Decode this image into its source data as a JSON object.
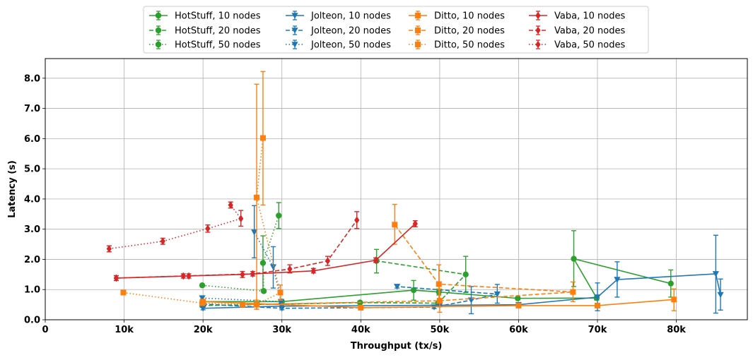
{
  "chart_data": {
    "type": "line",
    "xlabel": "Throughput (tx/s)",
    "ylabel": "Latency (s)",
    "xlim": [
      0,
      89000
    ],
    "ylim": [
      0,
      8.65
    ],
    "grid": true,
    "legend_position": "top-center",
    "x_ticks": [
      {
        "value": 0,
        "label": "0"
      },
      {
        "value": 10000,
        "label": "10k"
      },
      {
        "value": 20000,
        "label": "20k"
      },
      {
        "value": 30000,
        "label": "30k"
      },
      {
        "value": 40000,
        "label": "40k"
      },
      {
        "value": 50000,
        "label": "50k"
      },
      {
        "value": 60000,
        "label": "60k"
      },
      {
        "value": 70000,
        "label": "70k"
      },
      {
        "value": 80000,
        "label": "80k"
      }
    ],
    "y_ticks": [
      {
        "value": 0,
        "label": "0.0"
      },
      {
        "value": 1,
        "label": "1.0"
      },
      {
        "value": 2,
        "label": "2.0"
      },
      {
        "value": 3,
        "label": "3.0"
      },
      {
        "value": 4,
        "label": "4.0"
      },
      {
        "value": 5,
        "label": "5.0"
      },
      {
        "value": 6,
        "label": "6.0"
      },
      {
        "value": 7,
        "label": "7.0"
      },
      {
        "value": 8,
        "label": "8.0"
      }
    ],
    "series": [
      {
        "name": "HotStuff, 10 nodes",
        "color": "#2ca02c",
        "marker": "circle",
        "linestyle": "solid",
        "points": [
          {
            "x": 20000,
            "y": 0.6,
            "lo": 0.55,
            "hi": 0.65
          },
          {
            "x": 30000,
            "y": 0.6,
            "lo": 0.55,
            "hi": 0.65
          },
          {
            "x": 46700,
            "y": 0.98,
            "lo": 0.65,
            "hi": 1.3
          },
          {
            "x": 49900,
            "y": 0.92,
            "lo": 0.82,
            "hi": 1.02
          },
          {
            "x": 59900,
            "y": 0.71,
            "lo": 0.66,
            "hi": 0.76
          },
          {
            "x": 69900,
            "y": 0.72,
            "lo": 0.65,
            "hi": 0.8
          },
          {
            "x": 67000,
            "y": 2.02,
            "lo": 1.1,
            "hi": 2.95
          },
          {
            "x": 79300,
            "y": 1.2,
            "lo": 0.75,
            "hi": 1.65
          }
        ]
      },
      {
        "name": "HotStuff, 20 nodes",
        "color": "#2ca02c",
        "marker": "circle",
        "linestyle": "dashed",
        "points": [
          {
            "x": 19900,
            "y": 0.47,
            "lo": 0.42,
            "hi": 0.52
          },
          {
            "x": 39900,
            "y": 0.57,
            "lo": 0.52,
            "hi": 0.62
          },
          {
            "x": 49800,
            "y": 0.55,
            "lo": 0.5,
            "hi": 0.6
          },
          {
            "x": 53300,
            "y": 1.5,
            "lo": 0.9,
            "hi": 2.1
          },
          {
            "x": 42000,
            "y": 1.95,
            "lo": 1.55,
            "hi": 2.33
          }
        ]
      },
      {
        "name": "HotStuff, 50 nodes",
        "color": "#2ca02c",
        "marker": "circle",
        "linestyle": "dotted",
        "points": [
          {
            "x": 19900,
            "y": 1.14,
            "lo": 1.1,
            "hi": 1.18
          },
          {
            "x": 27700,
            "y": 0.95,
            "lo": 0.9,
            "hi": 1.0
          },
          {
            "x": 27600,
            "y": 1.88,
            "lo": 1.0,
            "hi": 2.78
          },
          {
            "x": 29600,
            "y": 3.45,
            "lo": 3.02,
            "hi": 3.88
          }
        ]
      },
      {
        "name": "Jolteon, 10 nodes",
        "color": "#1f77b4",
        "marker": "triangle-down",
        "linestyle": "solid",
        "points": [
          {
            "x": 20000,
            "y": 0.38,
            "lo": 0.33,
            "hi": 0.43
          },
          {
            "x": 30000,
            "y": 0.45,
            "lo": 0.4,
            "hi": 0.5
          },
          {
            "x": 50000,
            "y": 0.48,
            "lo": 0.43,
            "hi": 0.53
          },
          {
            "x": 60000,
            "y": 0.5,
            "lo": 0.45,
            "hi": 0.55
          },
          {
            "x": 70000,
            "y": 0.75,
            "lo": 0.3,
            "hi": 1.22
          },
          {
            "x": 72500,
            "y": 1.33,
            "lo": 0.75,
            "hi": 1.92
          },
          {
            "x": 85000,
            "y": 1.52,
            "lo": 0.22,
            "hi": 2.8
          },
          {
            "x": 85600,
            "y": 0.83,
            "lo": 0.32,
            "hi": 1.35
          }
        ]
      },
      {
        "name": "Jolteon, 20 nodes",
        "color": "#1f77b4",
        "marker": "triangle-down",
        "linestyle": "dashed",
        "points": [
          {
            "x": 20000,
            "y": 0.52,
            "lo": 0.47,
            "hi": 0.57
          },
          {
            "x": 30000,
            "y": 0.38,
            "lo": 0.33,
            "hi": 0.43
          },
          {
            "x": 40000,
            "y": 0.4,
            "lo": 0.35,
            "hi": 0.45
          },
          {
            "x": 49300,
            "y": 0.42,
            "lo": 0.37,
            "hi": 0.47
          },
          {
            "x": 54000,
            "y": 0.65,
            "lo": 0.2,
            "hi": 1.1
          },
          {
            "x": 57300,
            "y": 0.85,
            "lo": 0.55,
            "hi": 1.17
          },
          {
            "x": 44600,
            "y": 1.1,
            "lo": 1.05,
            "hi": 1.15
          }
        ]
      },
      {
        "name": "Jolteon, 50 nodes",
        "color": "#1f77b4",
        "marker": "triangle-down",
        "linestyle": "dotted",
        "points": [
          {
            "x": 19900,
            "y": 0.72,
            "lo": 0.67,
            "hi": 0.77
          },
          {
            "x": 29900,
            "y": 0.6,
            "lo": 0.55,
            "hi": 0.65
          },
          {
            "x": 28900,
            "y": 1.75,
            "lo": 1.05,
            "hi": 2.42
          },
          {
            "x": 26500,
            "y": 2.9,
            "lo": 2.05,
            "hi": 3.78
          }
        ]
      },
      {
        "name": "Ditto, 10 nodes",
        "color": "#ff7f0e",
        "marker": "square",
        "linestyle": "solid",
        "points": [
          {
            "x": 20000,
            "y": 0.6,
            "lo": 0.55,
            "hi": 0.65
          },
          {
            "x": 40000,
            "y": 0.4,
            "lo": 0.35,
            "hi": 0.45
          },
          {
            "x": 60000,
            "y": 0.47,
            "lo": 0.42,
            "hi": 0.52
          },
          {
            "x": 70000,
            "y": 0.47,
            "lo": 0.42,
            "hi": 0.52
          },
          {
            "x": 79700,
            "y": 0.67,
            "lo": 0.3,
            "hi": 1.02
          }
        ]
      },
      {
        "name": "Ditto, 20 nodes",
        "color": "#ff7f0e",
        "marker": "square",
        "linestyle": "dashed",
        "points": [
          {
            "x": 25000,
            "y": 0.5,
            "lo": 0.45,
            "hi": 0.55
          },
          {
            "x": 50000,
            "y": 0.63,
            "lo": 0.25,
            "hi": 1.02
          },
          {
            "x": 66900,
            "y": 0.92,
            "lo": 0.6,
            "hi": 1.25
          },
          {
            "x": 49900,
            "y": 1.18,
            "lo": 0.55,
            "hi": 1.82
          },
          {
            "x": 44300,
            "y": 3.15,
            "lo": 2.5,
            "hi": 3.82
          }
        ]
      },
      {
        "name": "Ditto, 50 nodes",
        "color": "#ff7f0e",
        "marker": "square",
        "linestyle": "dotted",
        "points": [
          {
            "x": 9900,
            "y": 0.9,
            "lo": 0.85,
            "hi": 0.95
          },
          {
            "x": 19900,
            "y": 0.55,
            "lo": 0.5,
            "hi": 0.6
          },
          {
            "x": 26800,
            "y": 0.5,
            "lo": 0.35,
            "hi": 0.65
          },
          {
            "x": 29800,
            "y": 0.9,
            "lo": 0.65,
            "hi": 1.15
          },
          {
            "x": 26800,
            "y": 4.05,
            "lo": 0.35,
            "hi": 7.8
          },
          {
            "x": 27600,
            "y": 6.02,
            "lo": 3.8,
            "hi": 8.22
          }
        ]
      },
      {
        "name": "Vaba, 10 nodes",
        "color": "#d62728",
        "marker": "diamond",
        "linestyle": "solid",
        "points": [
          {
            "x": 9000,
            "y": 1.38,
            "lo": 1.3,
            "hi": 1.46
          },
          {
            "x": 18200,
            "y": 1.45,
            "lo": 1.38,
            "hi": 1.52
          },
          {
            "x": 25000,
            "y": 1.5,
            "lo": 1.4,
            "hi": 1.6
          },
          {
            "x": 34000,
            "y": 1.62,
            "lo": 1.55,
            "hi": 1.7
          },
          {
            "x": 41900,
            "y": 1.97,
            "lo": 1.9,
            "hi": 2.05
          },
          {
            "x": 46900,
            "y": 3.18,
            "lo": 3.08,
            "hi": 3.28
          }
        ]
      },
      {
        "name": "Vaba, 20 nodes",
        "color": "#d62728",
        "marker": "diamond",
        "linestyle": "dashed",
        "points": [
          {
            "x": 9000,
            "y": 1.38,
            "lo": 1.3,
            "hi": 1.46
          },
          {
            "x": 17500,
            "y": 1.45,
            "lo": 1.38,
            "hi": 1.52
          },
          {
            "x": 26300,
            "y": 1.52,
            "lo": 1.45,
            "hi": 1.6
          },
          {
            "x": 31000,
            "y": 1.68,
            "lo": 1.55,
            "hi": 1.82
          },
          {
            "x": 35800,
            "y": 1.95,
            "lo": 1.8,
            "hi": 2.1
          },
          {
            "x": 39500,
            "y": 3.3,
            "lo": 3.02,
            "hi": 3.58
          }
        ]
      },
      {
        "name": "Vaba, 50 nodes",
        "color": "#d62728",
        "marker": "diamond",
        "linestyle": "dotted",
        "points": [
          {
            "x": 8100,
            "y": 2.35,
            "lo": 2.25,
            "hi": 2.45
          },
          {
            "x": 14900,
            "y": 2.6,
            "lo": 2.5,
            "hi": 2.7
          },
          {
            "x": 20600,
            "y": 3.02,
            "lo": 2.9,
            "hi": 3.14
          },
          {
            "x": 24800,
            "y": 3.35,
            "lo": 3.1,
            "hi": 3.62
          },
          {
            "x": 23500,
            "y": 3.8,
            "lo": 3.7,
            "hi": 3.9
          }
        ]
      }
    ]
  }
}
